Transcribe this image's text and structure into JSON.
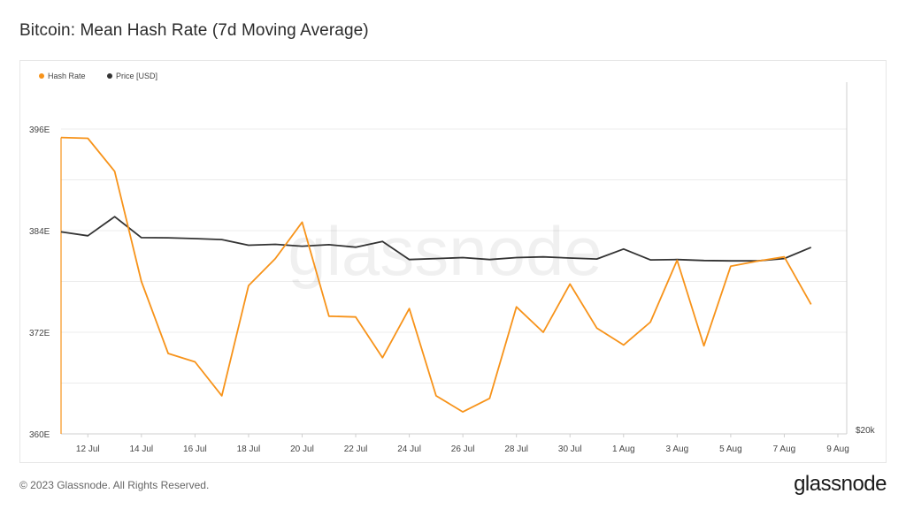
{
  "title": "Bitcoin: Mean Hash Rate (7d Moving Average)",
  "footer": {
    "copyright": "© 2023 Glassnode. All Rights Reserved.",
    "logo": "glassnode"
  },
  "watermark": "glassnode",
  "colors": {
    "hash_rate": "#f7931a",
    "price": "#333333",
    "grid": "#ececec",
    "axis_text": "#444444"
  },
  "chart_data": {
    "type": "line",
    "legend": [
      {
        "label": "Hash Rate",
        "color": "#f7931a"
      },
      {
        "label": "Price [USD]",
        "color": "#333333"
      }
    ],
    "legend_position": "top-left",
    "x_ticks": [
      "12 Jul",
      "14 Jul",
      "16 Jul",
      "18 Jul",
      "20 Jul",
      "22 Jul",
      "24 Jul",
      "26 Jul",
      "28 Jul",
      "30 Jul",
      "1 Aug",
      "3 Aug",
      "5 Aug",
      "7 Aug",
      "9 Aug"
    ],
    "y_ticks_left": [
      "360E",
      "372E",
      "384E",
      "396E"
    ],
    "y_ticks_right": [
      "$20k"
    ],
    "ylim_left": [
      360,
      396
    ],
    "grid": true,
    "x_range": [
      "2023-07-11",
      "2023-08-09"
    ],
    "series": [
      {
        "name": "Hash Rate",
        "axis": "left",
        "unit": "EH/s",
        "x": [
          "2023-07-11",
          "2023-07-12",
          "2023-07-13",
          "2023-07-14",
          "2023-07-15",
          "2023-07-16",
          "2023-07-17",
          "2023-07-18",
          "2023-07-19",
          "2023-07-20",
          "2023-07-21",
          "2023-07-22",
          "2023-07-23",
          "2023-07-24",
          "2023-07-25",
          "2023-07-26",
          "2023-07-27",
          "2023-07-28",
          "2023-07-29",
          "2023-07-30",
          "2023-07-31",
          "2023-08-01",
          "2023-08-02",
          "2023-08-03",
          "2023-08-04",
          "2023-08-05",
          "2023-08-06",
          "2023-08-07",
          "2023-08-08"
        ],
        "y": [
          395.0,
          394.9,
          391.0,
          378.0,
          369.5,
          368.5,
          364.5,
          377.5,
          380.7,
          385.0,
          373.9,
          373.8,
          369.0,
          374.8,
          364.5,
          362.6,
          364.2,
          375.0,
          372.0,
          377.7,
          372.5,
          370.5,
          373.2,
          380.5,
          370.4,
          379.8,
          380.4,
          380.9,
          375.3
        ]
      },
      {
        "name": "Price [USD]",
        "axis": "right",
        "unit": "USD",
        "x": [
          "2023-07-11",
          "2023-07-12",
          "2023-07-13",
          "2023-07-14",
          "2023-07-15",
          "2023-07-16",
          "2023-07-17",
          "2023-07-18",
          "2023-07-19",
          "2023-07-20",
          "2023-07-21",
          "2023-07-22",
          "2023-07-23",
          "2023-07-24",
          "2023-07-25",
          "2023-07-26",
          "2023-07-27",
          "2023-07-28",
          "2023-07-29",
          "2023-07-30",
          "2023-07-31",
          "2023-08-01",
          "2023-08-02",
          "2023-08-03",
          "2023-08-04",
          "2023-08-05",
          "2023-08-06",
          "2023-08-07",
          "2023-08-08"
        ],
        "y": [
          30600,
          30400,
          31400,
          30300,
          30290,
          30250,
          30200,
          29900,
          29950,
          29850,
          29930,
          29800,
          30100,
          29150,
          29200,
          29250,
          29150,
          29250,
          29290,
          29230,
          29180,
          29700,
          29130,
          29150,
          29100,
          29080,
          29080,
          29200,
          29790
        ]
      }
    ]
  }
}
